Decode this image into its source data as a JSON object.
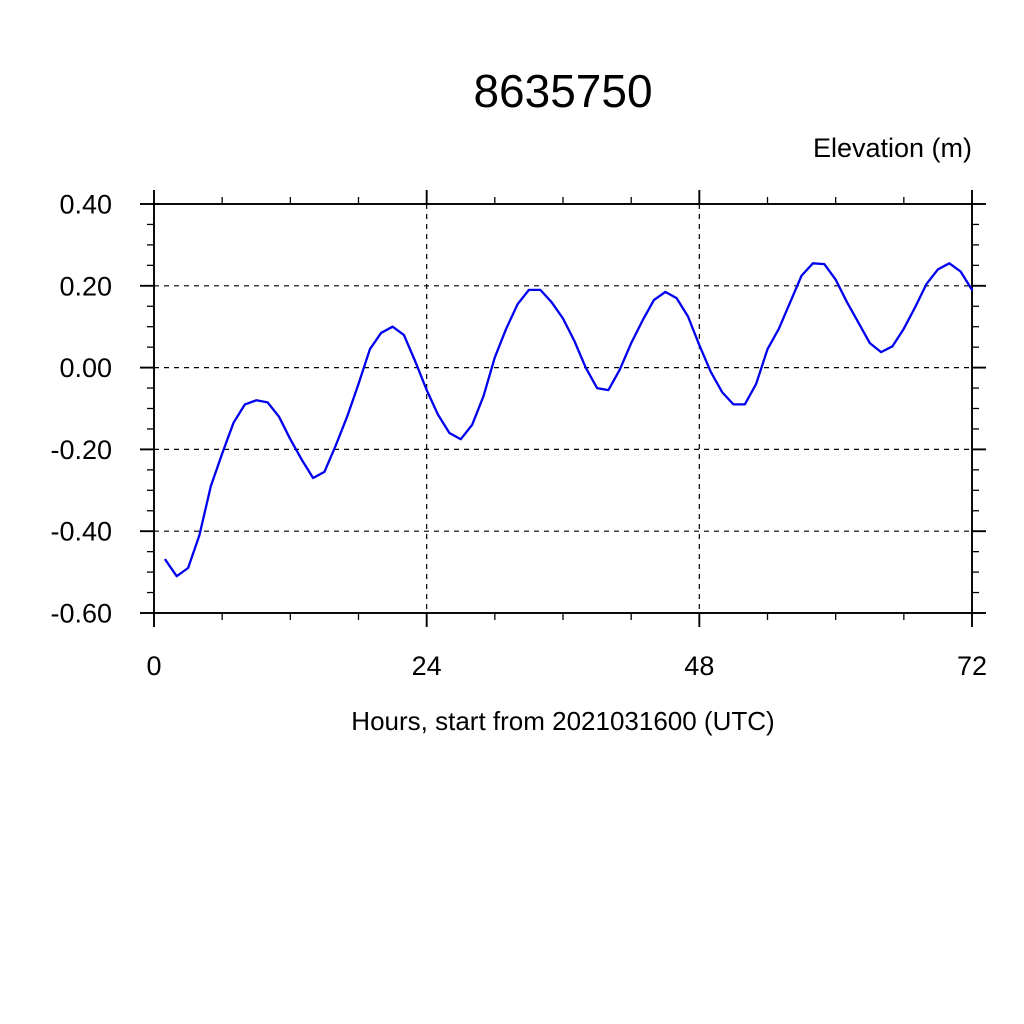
{
  "page": {
    "background": "#ffffff"
  },
  "chart_data": {
    "type": "line",
    "title": "8635750",
    "ylabel": "Elevation (m)",
    "xlabel": "Hours, start from 2021031600 (UTC)",
    "xlim": [
      0,
      72
    ],
    "ylim": [
      -0.6,
      0.4
    ],
    "xticks": [
      {
        "v": 0,
        "label": "0"
      },
      {
        "v": 24,
        "label": "24"
      },
      {
        "v": 48,
        "label": "48"
      },
      {
        "v": 72,
        "label": "72"
      }
    ],
    "yticks": [
      {
        "v": 0.4,
        "label": "0.40"
      },
      {
        "v": 0.2,
        "label": "0.20"
      },
      {
        "v": 0.0,
        "label": "0.00"
      },
      {
        "v": -0.2,
        "label": "-0.20"
      },
      {
        "v": -0.4,
        "label": "-0.40"
      },
      {
        "v": -0.6,
        "label": "-0.60"
      }
    ],
    "x_minor_step": 6,
    "y_minor_step": 0.05,
    "grid": "dashed",
    "legend": "none",
    "line_color": "#0000EE",
    "axis_color": "#000000",
    "series": [
      {
        "name": "elevation",
        "x": [
          1,
          2,
          3,
          4,
          5,
          6,
          7,
          8,
          9,
          10,
          11,
          12,
          13,
          14,
          15,
          16,
          17,
          18,
          19,
          20,
          21,
          22,
          23,
          24,
          25,
          26,
          27,
          28,
          29,
          30,
          31,
          32,
          33,
          34,
          35,
          36,
          37,
          38,
          39,
          40,
          41,
          42,
          43,
          44,
          45,
          46,
          47,
          48,
          49,
          50,
          51,
          52,
          53,
          54,
          55,
          56,
          57,
          58,
          59,
          60,
          61,
          62,
          63,
          64,
          65,
          66,
          67,
          68,
          69,
          70,
          71,
          72
        ],
        "y": [
          -0.47,
          -0.51,
          -0.49,
          -0.41,
          -0.29,
          -0.21,
          -0.135,
          -0.09,
          -0.08,
          -0.085,
          -0.12,
          -0.175,
          -0.225,
          -0.27,
          -0.255,
          -0.19,
          -0.12,
          -0.04,
          0.045,
          0.085,
          0.1,
          0.08,
          0.015,
          -0.055,
          -0.115,
          -0.16,
          -0.175,
          -0.14,
          -0.07,
          0.025,
          0.095,
          0.155,
          0.19,
          0.19,
          0.16,
          0.12,
          0.065,
          0.0,
          -0.05,
          -0.055,
          -0.005,
          0.06,
          0.115,
          0.165,
          0.185,
          0.17,
          0.125,
          0.055,
          -0.01,
          -0.06,
          -0.09,
          -0.09,
          -0.04,
          0.045,
          0.095,
          0.16,
          0.225,
          0.255,
          0.253,
          0.215,
          0.16,
          0.11,
          0.06,
          0.038,
          0.052,
          0.095,
          0.148,
          0.205,
          0.24,
          0.255,
          0.235,
          0.19
        ]
      }
    ]
  }
}
